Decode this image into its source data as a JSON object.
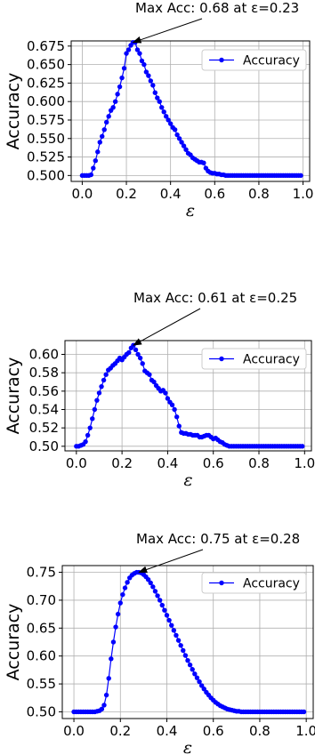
{
  "chart_data": [
    {
      "type": "line",
      "annotation": "Max Acc: 0.68 at ε=0.23",
      "max_point": {
        "x": 0.23,
        "y": 0.68
      },
      "xlabel": "ε",
      "ylabel": "Accuracy",
      "xlim": [
        -0.05,
        1.03
      ],
      "ylim": [
        0.492,
        0.682
      ],
      "xticks": [
        0.0,
        0.2,
        0.4,
        0.6,
        0.8,
        1.0
      ],
      "xtick_labels": [
        "0.0",
        "0.2",
        "0.4",
        "0.6",
        "0.8",
        "1.0"
      ],
      "yticks": [
        0.5,
        0.525,
        0.55,
        0.575,
        0.6,
        0.625,
        0.65,
        0.675
      ],
      "ytick_labels": [
        "0.500",
        "0.525",
        "0.550",
        "0.575",
        "0.600",
        "0.625",
        "0.650",
        "0.675"
      ],
      "grid": true,
      "legend_position": "top-right",
      "color": "#0000ff",
      "series": [
        {
          "name": "Accuracy",
          "x": [
            0.0,
            0.01,
            0.02,
            0.03,
            0.04,
            0.05,
            0.06,
            0.07,
            0.08,
            0.09,
            0.1,
            0.11,
            0.12,
            0.13,
            0.14,
            0.15,
            0.16,
            0.17,
            0.18,
            0.19,
            0.2,
            0.21,
            0.22,
            0.23,
            0.24,
            0.25,
            0.26,
            0.27,
            0.28,
            0.29,
            0.3,
            0.31,
            0.32,
            0.33,
            0.34,
            0.35,
            0.36,
            0.37,
            0.38,
            0.39,
            0.4,
            0.41,
            0.42,
            0.43,
            0.44,
            0.45,
            0.46,
            0.47,
            0.48,
            0.49,
            0.5,
            0.51,
            0.52,
            0.53,
            0.54,
            0.55,
            0.56,
            0.57,
            0.58,
            0.59,
            0.6,
            0.61,
            0.62,
            0.63,
            0.64,
            0.65,
            0.66,
            0.67,
            0.68,
            0.69,
            0.7,
            0.71,
            0.72,
            0.73,
            0.74,
            0.75,
            0.76,
            0.77,
            0.78,
            0.79,
            0.8,
            0.81,
            0.82,
            0.83,
            0.84,
            0.85,
            0.86,
            0.87,
            0.88,
            0.89,
            0.9,
            0.91,
            0.92,
            0.93,
            0.94,
            0.95,
            0.96,
            0.97,
            0.98,
            0.99
          ],
          "y": [
            0.5,
            0.5,
            0.5,
            0.5,
            0.501,
            0.51,
            0.52,
            0.532,
            0.545,
            0.553,
            0.562,
            0.572,
            0.58,
            0.588,
            0.592,
            0.6,
            0.61,
            0.62,
            0.632,
            0.645,
            0.665,
            0.67,
            0.676,
            0.68,
            0.68,
            0.67,
            0.665,
            0.655,
            0.65,
            0.64,
            0.635,
            0.628,
            0.622,
            0.612,
            0.605,
            0.6,
            0.592,
            0.586,
            0.58,
            0.575,
            0.57,
            0.565,
            0.562,
            0.555,
            0.55,
            0.545,
            0.54,
            0.535,
            0.53,
            0.528,
            0.524,
            0.522,
            0.52,
            0.518,
            0.518,
            0.517,
            0.51,
            0.506,
            0.504,
            0.503,
            0.503,
            0.502,
            0.502,
            0.501,
            0.501,
            0.5,
            0.5,
            0.5,
            0.5,
            0.5,
            0.5,
            0.5,
            0.5,
            0.5,
            0.5,
            0.5,
            0.5,
            0.5,
            0.5,
            0.5,
            0.5,
            0.5,
            0.5,
            0.5,
            0.5,
            0.5,
            0.5,
            0.5,
            0.5,
            0.5,
            0.5,
            0.5,
            0.5,
            0.5,
            0.5,
            0.5,
            0.5,
            0.5,
            0.5,
            0.5
          ]
        }
      ]
    },
    {
      "type": "line",
      "annotation": "Max Acc: 0.61 at ε=0.25",
      "max_point": {
        "x": 0.25,
        "y": 0.61
      },
      "xlabel": "ε",
      "ylabel": "Accuracy",
      "xlim": [
        -0.05,
        1.03
      ],
      "ylim": [
        0.495,
        0.615
      ],
      "xticks": [
        0.0,
        0.2,
        0.4,
        0.6,
        0.8,
        1.0
      ],
      "xtick_labels": [
        "0.0",
        "0.2",
        "0.4",
        "0.6",
        "0.8",
        "1.0"
      ],
      "yticks": [
        0.5,
        0.52,
        0.54,
        0.56,
        0.58,
        0.6
      ],
      "ytick_labels": [
        "0.50",
        "0.52",
        "0.54",
        "0.56",
        "0.58",
        "0.60"
      ],
      "grid": true,
      "legend_position": "top-right",
      "color": "#0000ff",
      "series": [
        {
          "name": "Accuracy",
          "x": [
            0.0,
            0.01,
            0.02,
            0.03,
            0.04,
            0.05,
            0.06,
            0.07,
            0.08,
            0.09,
            0.1,
            0.11,
            0.12,
            0.13,
            0.14,
            0.15,
            0.16,
            0.17,
            0.18,
            0.19,
            0.2,
            0.21,
            0.22,
            0.23,
            0.24,
            0.25,
            0.26,
            0.27,
            0.28,
            0.29,
            0.3,
            0.31,
            0.32,
            0.33,
            0.34,
            0.35,
            0.36,
            0.37,
            0.38,
            0.39,
            0.4,
            0.41,
            0.42,
            0.43,
            0.44,
            0.45,
            0.46,
            0.47,
            0.48,
            0.49,
            0.5,
            0.51,
            0.52,
            0.53,
            0.54,
            0.55,
            0.56,
            0.57,
            0.58,
            0.59,
            0.6,
            0.61,
            0.62,
            0.63,
            0.64,
            0.65,
            0.66,
            0.67,
            0.68,
            0.69,
            0.7,
            0.71,
            0.72,
            0.73,
            0.74,
            0.75,
            0.76,
            0.77,
            0.78,
            0.79,
            0.8,
            0.81,
            0.82,
            0.83,
            0.84,
            0.85,
            0.86,
            0.87,
            0.88,
            0.89,
            0.9,
            0.91,
            0.92,
            0.93,
            0.94,
            0.95,
            0.96,
            0.97,
            0.98,
            0.99
          ],
          "y": [
            0.5,
            0.5,
            0.501,
            0.502,
            0.505,
            0.512,
            0.52,
            0.53,
            0.54,
            0.55,
            0.558,
            0.565,
            0.572,
            0.578,
            0.583,
            0.585,
            0.588,
            0.59,
            0.593,
            0.596,
            0.594,
            0.597,
            0.6,
            0.602,
            0.607,
            0.61,
            0.605,
            0.6,
            0.596,
            0.59,
            0.582,
            0.58,
            0.578,
            0.572,
            0.57,
            0.566,
            0.563,
            0.56,
            0.561,
            0.558,
            0.552,
            0.548,
            0.545,
            0.54,
            0.532,
            0.522,
            0.515,
            0.514,
            0.514,
            0.513,
            0.513,
            0.512,
            0.512,
            0.512,
            0.51,
            0.51,
            0.511,
            0.512,
            0.512,
            0.51,
            0.508,
            0.509,
            0.507,
            0.505,
            0.504,
            0.502,
            0.501,
            0.5,
            0.5,
            0.5,
            0.5,
            0.5,
            0.5,
            0.5,
            0.5,
            0.5,
            0.5,
            0.5,
            0.5,
            0.5,
            0.5,
            0.5,
            0.5,
            0.5,
            0.5,
            0.5,
            0.5,
            0.5,
            0.5,
            0.5,
            0.5,
            0.5,
            0.5,
            0.5,
            0.5,
            0.5,
            0.5,
            0.5,
            0.5,
            0.5
          ]
        }
      ]
    },
    {
      "type": "line",
      "annotation": "Max Acc: 0.75 at ε=0.28",
      "max_point": {
        "x": 0.28,
        "y": 0.75
      },
      "xlabel": "ε",
      "ylabel": "Accuracy",
      "xlim": [
        -0.05,
        1.03
      ],
      "ylim": [
        0.488,
        0.762
      ],
      "xticks": [
        0.0,
        0.2,
        0.4,
        0.6,
        0.8,
        1.0
      ],
      "xtick_labels": [
        "0.0",
        "0.2",
        "0.4",
        "0.6",
        "0.8",
        "1.0"
      ],
      "yticks": [
        0.5,
        0.55,
        0.6,
        0.65,
        0.7,
        0.75
      ],
      "ytick_labels": [
        "0.50",
        "0.55",
        "0.60",
        "0.65",
        "0.70",
        "0.75"
      ],
      "grid": true,
      "legend_position": "top-right",
      "color": "#0000ff",
      "series": [
        {
          "name": "Accuracy",
          "x": [
            0.0,
            0.01,
            0.02,
            0.03,
            0.04,
            0.05,
            0.06,
            0.07,
            0.08,
            0.09,
            0.1,
            0.11,
            0.12,
            0.13,
            0.14,
            0.15,
            0.16,
            0.17,
            0.18,
            0.19,
            0.2,
            0.21,
            0.22,
            0.23,
            0.24,
            0.25,
            0.26,
            0.27,
            0.28,
            0.29,
            0.3,
            0.31,
            0.32,
            0.33,
            0.34,
            0.35,
            0.36,
            0.37,
            0.38,
            0.39,
            0.4,
            0.41,
            0.42,
            0.43,
            0.44,
            0.45,
            0.46,
            0.47,
            0.48,
            0.49,
            0.5,
            0.51,
            0.52,
            0.53,
            0.54,
            0.55,
            0.56,
            0.57,
            0.58,
            0.59,
            0.6,
            0.61,
            0.62,
            0.63,
            0.64,
            0.65,
            0.66,
            0.67,
            0.68,
            0.69,
            0.7,
            0.71,
            0.72,
            0.73,
            0.74,
            0.75,
            0.76,
            0.77,
            0.78,
            0.79,
            0.8,
            0.81,
            0.82,
            0.83,
            0.84,
            0.85,
            0.86,
            0.87,
            0.88,
            0.89,
            0.9,
            0.91,
            0.92,
            0.93,
            0.94,
            0.95,
            0.96,
            0.97,
            0.98,
            0.99
          ],
          "y": [
            0.5,
            0.5,
            0.5,
            0.5,
            0.5,
            0.5,
            0.5,
            0.5,
            0.5,
            0.5,
            0.501,
            0.502,
            0.505,
            0.512,
            0.53,
            0.56,
            0.595,
            0.625,
            0.652,
            0.675,
            0.695,
            0.71,
            0.722,
            0.732,
            0.74,
            0.745,
            0.748,
            0.75,
            0.75,
            0.749,
            0.746,
            0.742,
            0.737,
            0.731,
            0.724,
            0.716,
            0.708,
            0.7,
            0.691,
            0.682,
            0.673,
            0.664,
            0.655,
            0.646,
            0.637,
            0.628,
            0.619,
            0.61,
            0.601,
            0.592,
            0.584,
            0.576,
            0.568,
            0.561,
            0.554,
            0.547,
            0.541,
            0.535,
            0.53,
            0.525,
            0.521,
            0.517,
            0.514,
            0.511,
            0.509,
            0.507,
            0.505,
            0.504,
            0.503,
            0.502,
            0.501,
            0.501,
            0.5,
            0.5,
            0.5,
            0.5,
            0.5,
            0.5,
            0.5,
            0.5,
            0.5,
            0.5,
            0.5,
            0.5,
            0.5,
            0.5,
            0.5,
            0.5,
            0.5,
            0.5,
            0.5,
            0.5,
            0.5,
            0.5,
            0.5,
            0.5,
            0.5,
            0.5,
            0.5,
            0.5
          ]
        }
      ]
    }
  ]
}
